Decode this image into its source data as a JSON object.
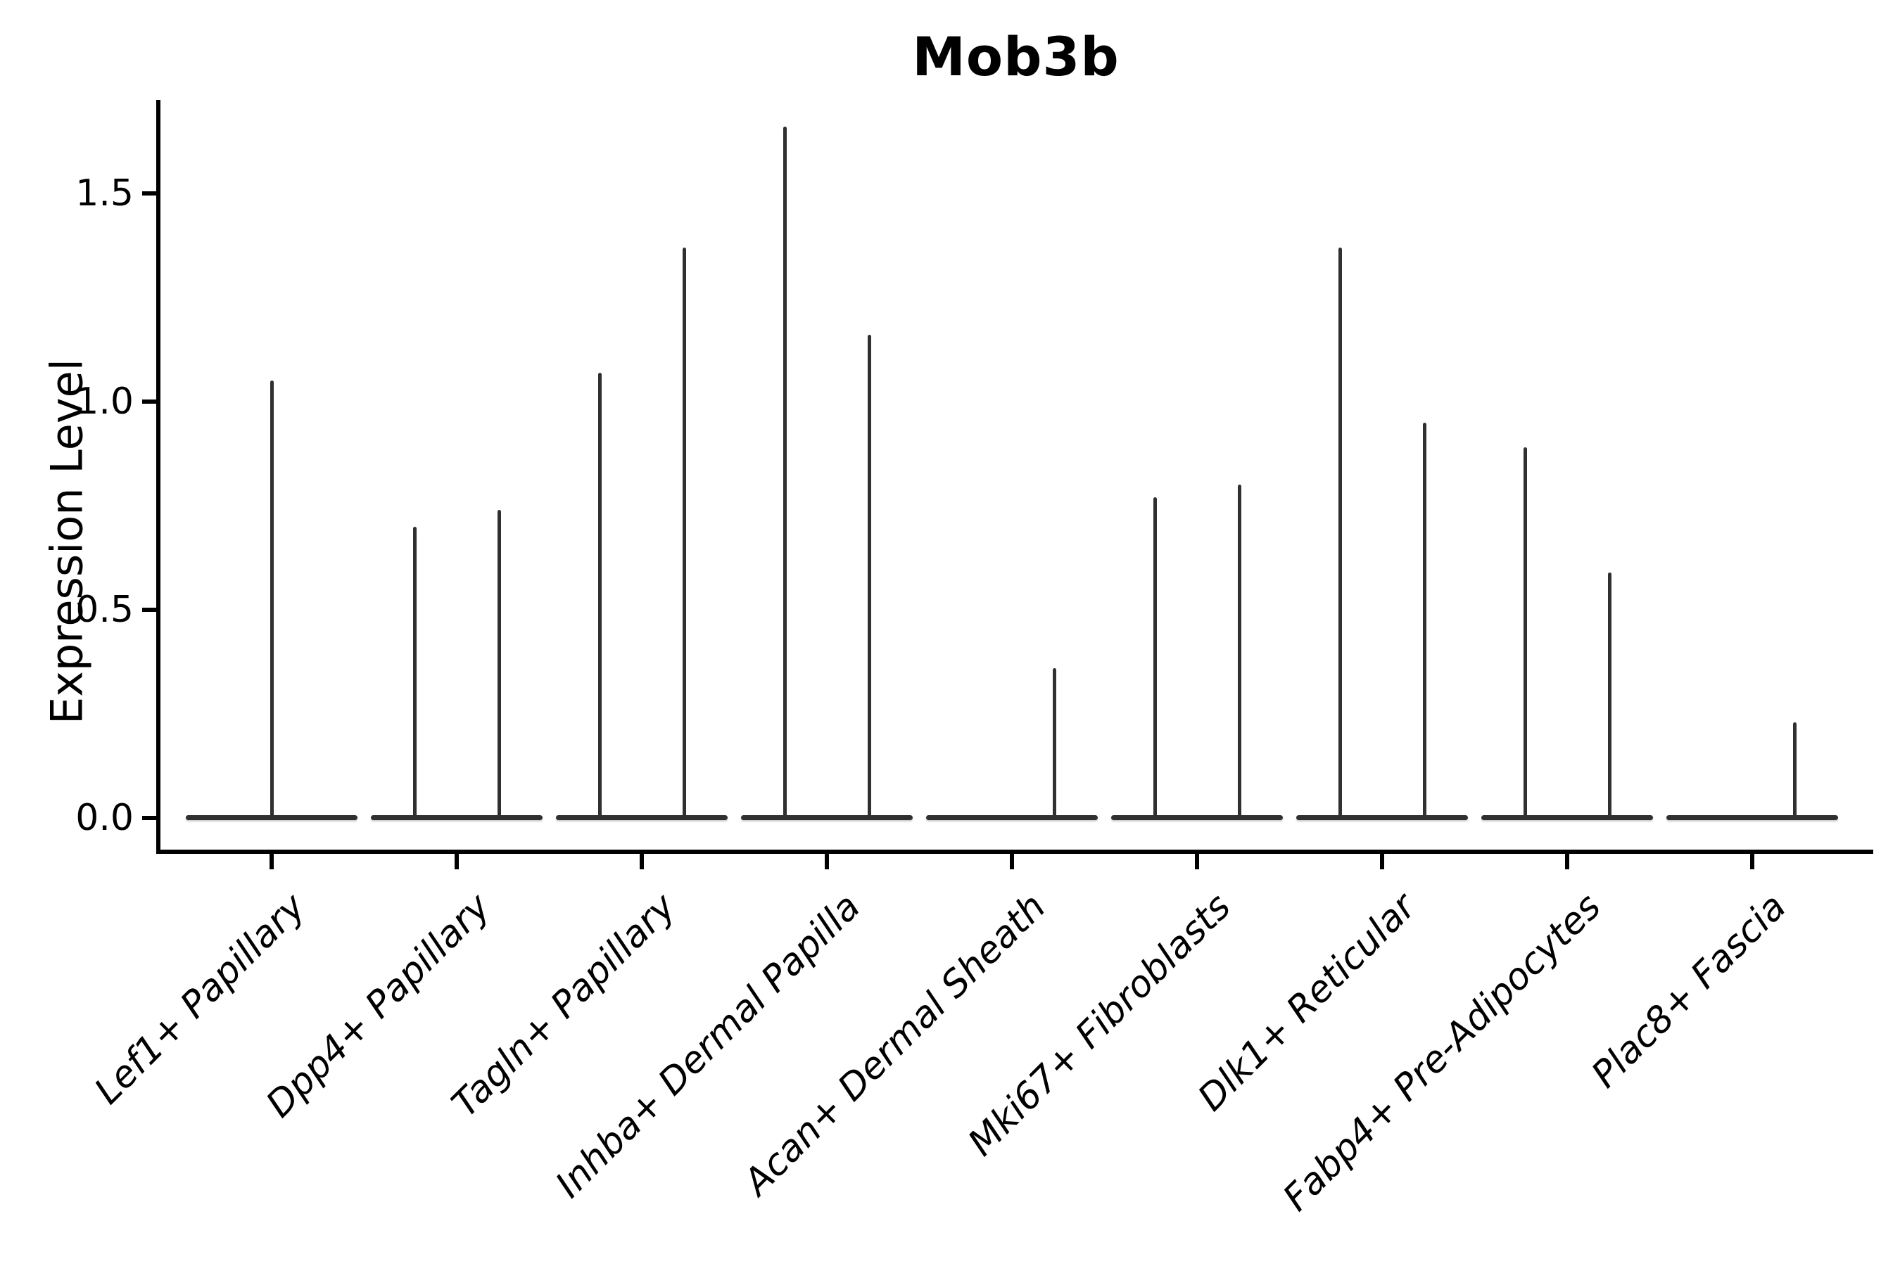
{
  "title": "Mob3b",
  "colors": {
    "violin": "#303030",
    "axis": "#000000",
    "text": "#000000",
    "background": "#ffffff"
  },
  "chart_data": {
    "type": "violin",
    "title": "Mob3b",
    "xlabel": "",
    "ylabel": "Expression Level",
    "grid": false,
    "legend": "none",
    "ylim": [
      -0.08,
      1.73
    ],
    "y_ticks": [
      {
        "value": 0.0,
        "label": "0.0"
      },
      {
        "value": 0.5,
        "label": "0.5"
      },
      {
        "value": 1.0,
        "label": "1.0"
      },
      {
        "value": 1.5,
        "label": "1.5"
      }
    ],
    "categories": [
      "Lef1+ Papillary",
      "Dpp4+ Papillary",
      "Tagln+ Papillary",
      "Inhba+ Dermal Papilla",
      "Acan+ Dermal Sheath",
      "Mki67+ Fibroblasts",
      "Dlk1+ Reticular",
      "Fabp4+ Pre-Adipocytes",
      "Plac8+ Fascia"
    ],
    "baseline_value": 0.0,
    "description": "Needle-thin violins: distribution mass sits at 0 expression (flat bar spanning each category) with a thin spike up to the maximum expression; spikes sit at center / left / right sub-violin positions.",
    "violins": [
      {
        "category": "Lef1+ Papillary",
        "spikes": [
          {
            "pos": "center",
            "max": 1.05
          }
        ]
      },
      {
        "category": "Dpp4+ Papillary",
        "spikes": [
          {
            "pos": "left",
            "max": 0.7
          },
          {
            "pos": "right",
            "max": 0.74
          }
        ]
      },
      {
        "category": "Tagln+ Papillary",
        "spikes": [
          {
            "pos": "left",
            "max": 1.07
          },
          {
            "pos": "right",
            "max": 1.37
          }
        ]
      },
      {
        "category": "Inhba+ Dermal Papilla",
        "spikes": [
          {
            "pos": "left",
            "max": 1.66
          },
          {
            "pos": "right",
            "max": 1.16
          }
        ]
      },
      {
        "category": "Acan+ Dermal Sheath",
        "spikes": [
          {
            "pos": "right",
            "max": 0.36
          }
        ]
      },
      {
        "category": "Mki67+ Fibroblasts",
        "spikes": [
          {
            "pos": "left",
            "max": 0.77
          },
          {
            "pos": "right",
            "max": 0.8
          }
        ]
      },
      {
        "category": "Dlk1+ Reticular",
        "spikes": [
          {
            "pos": "left",
            "max": 1.37
          },
          {
            "pos": "right",
            "max": 0.95
          }
        ]
      },
      {
        "category": "Fabp4+ Pre-Adipocytes",
        "spikes": [
          {
            "pos": "left",
            "max": 0.89
          },
          {
            "pos": "right",
            "max": 0.59
          }
        ]
      },
      {
        "category": "Plac8+ Fascia",
        "spikes": [
          {
            "pos": "right",
            "max": 0.23
          }
        ]
      }
    ]
  }
}
